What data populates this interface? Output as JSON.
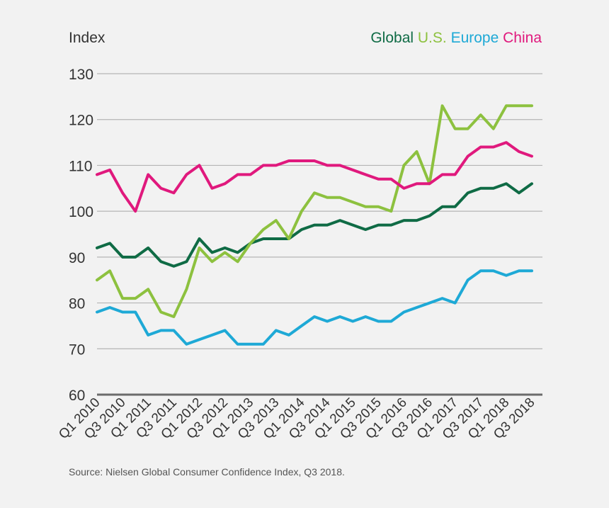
{
  "chart_data": {
    "type": "line",
    "ylabel": "Index",
    "ylim": [
      60,
      130
    ],
    "yticks": [
      60,
      70,
      80,
      90,
      100,
      110,
      120,
      130
    ],
    "grid": true,
    "legend_position": "top-right",
    "categories": [
      "Q1 2010",
      "Q2 2010",
      "Q3 2010",
      "Q4 2010",
      "Q1 2011",
      "Q2 2011",
      "Q3 2011",
      "Q4 2011",
      "Q1 2012",
      "Q2 2012",
      "Q3 2012",
      "Q4 2012",
      "Q1 2013",
      "Q2 2013",
      "Q3 2013",
      "Q4 2013",
      "Q1 2014",
      "Q2 2014",
      "Q3 2014",
      "Q4 2014",
      "Q1 2015",
      "Q2 2015",
      "Q3 2015",
      "Q4 2015",
      "Q1 2016",
      "Q2 2016",
      "Q3 2016",
      "Q4 2016",
      "Q1 2017",
      "Q2 2017",
      "Q3 2017",
      "Q4 2017",
      "Q1 2018",
      "Q2 2018",
      "Q3 2018"
    ],
    "tick_labels": [
      "Q1 2010",
      "Q3 2010",
      "Q1 2011",
      "Q3 2011",
      "Q1 2012",
      "Q3 2012",
      "Q1 2013",
      "Q3 2013",
      "Q1 2014",
      "Q3 2014",
      "Q1 2015",
      "Q3 2015",
      "Q1 2016",
      "Q3 2016",
      "Q1 2017",
      "Q3 2017",
      "Q1 2018",
      "Q3 2018"
    ],
    "series": [
      {
        "name": "Global",
        "color": "#0f6b45",
        "values": [
          92,
          93,
          90,
          90,
          92,
          89,
          88,
          89,
          94,
          91,
          92,
          91,
          93,
          94,
          94,
          94,
          96,
          97,
          97,
          98,
          97,
          96,
          97,
          97,
          98,
          98,
          99,
          101,
          101,
          104,
          105,
          105,
          106,
          104,
          106
        ]
      },
      {
        "name": "U.S.",
        "color": "#8dc13f",
        "values": [
          85,
          87,
          81,
          81,
          83,
          78,
          77,
          83,
          92,
          89,
          91,
          89,
          93,
          96,
          98,
          94,
          100,
          104,
          103,
          103,
          102,
          101,
          101,
          100,
          110,
          113,
          106,
          123,
          118,
          118,
          121,
          118,
          123,
          123,
          123
        ]
      },
      {
        "name": "Europe",
        "color": "#1ea9d6",
        "values": [
          78,
          79,
          78,
          78,
          73,
          74,
          74,
          71,
          72,
          73,
          74,
          71,
          71,
          71,
          74,
          73,
          75,
          77,
          76,
          77,
          76,
          77,
          76,
          76,
          78,
          79,
          80,
          81,
          80,
          85,
          87,
          87,
          86,
          87,
          87
        ]
      },
      {
        "name": "China",
        "color": "#e0197d",
        "values": [
          108,
          109,
          104,
          100,
          108,
          105,
          104,
          108,
          110,
          105,
          106,
          108,
          108,
          110,
          110,
          111,
          111,
          111,
          110,
          110,
          109,
          108,
          107,
          107,
          105,
          106,
          106,
          108,
          108,
          112,
          114,
          114,
          115,
          113,
          112
        ]
      }
    ]
  },
  "source": "Source: Nielsen Global Consumer Confidence Index, Q3 2018."
}
